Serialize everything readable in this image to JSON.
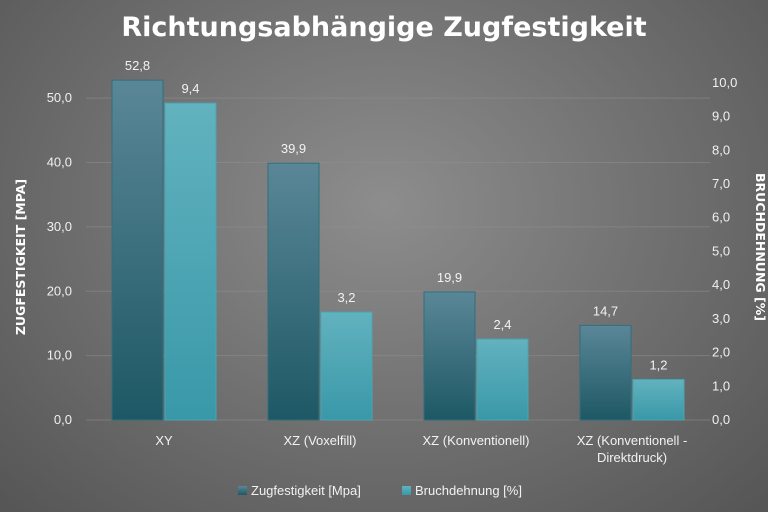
{
  "chart_data": {
    "type": "bar",
    "title": "Richtungsabhängige Zugfestigkeit",
    "categories": [
      [
        "XY"
      ],
      [
        "XZ (Voxelfill)"
      ],
      [
        "XZ (Konventionell)"
      ],
      [
        "XZ (Konventionell -",
        "Direktdruck)"
      ]
    ],
    "series": [
      {
        "name": "Zugfestigkeit [Mpa]",
        "axis": "left",
        "values": [
          52.8,
          39.9,
          19.9,
          14.7
        ],
        "labels": [
          "52,8",
          "39,9",
          "19,9",
          "14,7"
        ],
        "color_top": "#5a8797",
        "color_bottom": "#1e5865"
      },
      {
        "name": "Bruchdehnung [%]",
        "axis": "right",
        "values": [
          9.4,
          3.2,
          2.4,
          1.2
        ],
        "labels": [
          "9,4",
          "3,2",
          "2,4",
          "1,2"
        ],
        "color_top": "#62b2bf",
        "color_bottom": "#3998a8"
      }
    ],
    "ylabel": "ZUGFESTIGKEIT [MPA]",
    "y2label": "BRUCHDEHNUNG [%]",
    "ylim": [
      0,
      55
    ],
    "y2lim": [
      0,
      10.5
    ],
    "yticks": [
      0,
      10,
      20,
      30,
      40,
      50
    ],
    "ytick_labels": [
      "0,0",
      "10,0",
      "20,0",
      "30,0",
      "40,0",
      "50,0"
    ],
    "y2ticks": [
      0,
      1,
      2,
      3,
      4,
      5,
      6,
      7,
      8,
      9,
      10
    ],
    "y2tick_labels": [
      "0,0",
      "1,0",
      "2,0",
      "3,0",
      "4,0",
      "5,0",
      "6,0",
      "7,0",
      "8,0",
      "9,0",
      "10,0"
    ],
    "grid": true,
    "legend": "bottom"
  }
}
